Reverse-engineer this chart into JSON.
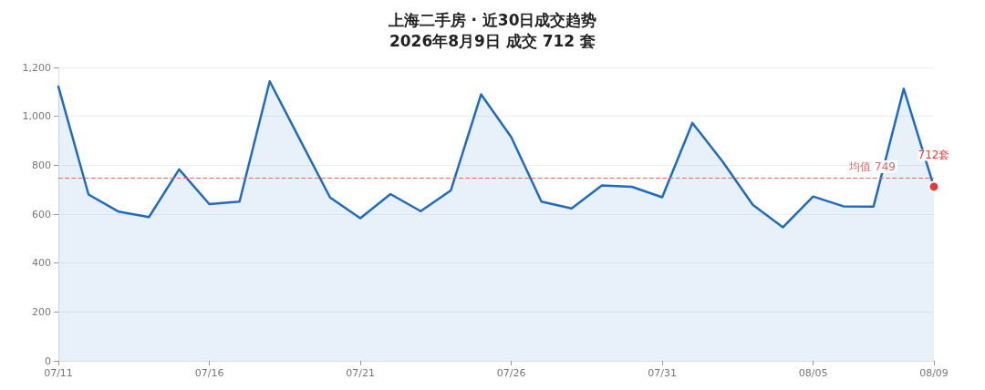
{
  "chart_data": {
    "type": "area",
    "title": "上海二手房 · 近30日成交趋势",
    "subtitle": "2026年8月9日 成交 712 套",
    "categories": [
      "07/11",
      null,
      null,
      null,
      null,
      "07/16",
      null,
      null,
      null,
      null,
      "07/21",
      null,
      null,
      null,
      null,
      "07/26",
      null,
      null,
      null,
      null,
      "07/31",
      null,
      null,
      null,
      null,
      "08/05",
      null,
      null,
      null,
      "08/09"
    ],
    "series": [
      {
        "color": "#1f6bc1",
        "values": [
          1122,
          680,
          610,
          588,
          783,
          641,
          651,
          1143,
          905,
          668,
          583,
          682,
          612,
          697,
          1090,
          915,
          651,
          623,
          717,
          712,
          669,
          973,
          815,
          638,
          546,
          672,
          632,
          631,
          1113,
          712
        ]
      }
    ],
    "ylim": [
      0,
      1200
    ],
    "yticks": [
      0,
      200,
      400,
      600,
      800,
      {
        "value": 1000,
        "label": "1,000"
      },
      {
        "value": 1200,
        "label": "1,200"
      }
    ],
    "grid": "y",
    "marker": "none",
    "line_style": "solid",
    "ref_lines": [
      {
        "axis": "y",
        "value": 749,
        "label": "均值 749",
        "color": "#e06666",
        "line_style": "dashed"
      }
    ],
    "annotations": [
      {
        "text": "712套",
        "x": "08/09",
        "y": 712
      }
    ]
  }
}
